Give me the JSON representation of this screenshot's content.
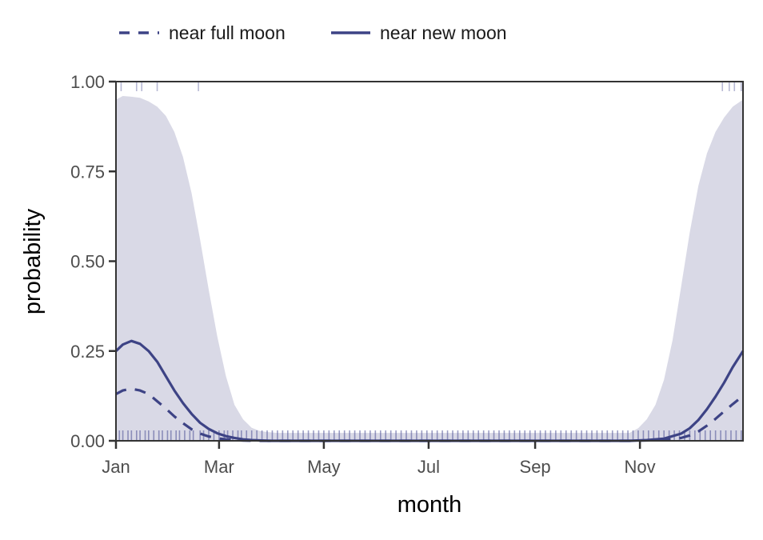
{
  "chart_data": {
    "type": "line",
    "title": "",
    "xlabel": "month",
    "ylabel": "probability",
    "x_unit": "day of year",
    "xlim": [
      1,
      366
    ],
    "ylim": [
      0,
      1
    ],
    "x_ticks": [
      {
        "value": 1,
        "label": "Jan"
      },
      {
        "value": 61,
        "label": "Mar"
      },
      {
        "value": 122,
        "label": "May"
      },
      {
        "value": 183,
        "label": "Jul"
      },
      {
        "value": 245,
        "label": "Sep"
      },
      {
        "value": 306,
        "label": "Nov"
      }
    ],
    "y_ticks": [
      {
        "value": 0,
        "label": "0.00"
      },
      {
        "value": 0.25,
        "label": "0.25"
      },
      {
        "value": 0.5,
        "label": "0.50"
      },
      {
        "value": 0.75,
        "label": "0.75"
      },
      {
        "value": 1,
        "label": "1.00"
      }
    ],
    "legend": {
      "placement": "top-left"
    },
    "colors": {
      "line": "#3d4385",
      "band": "#d9d9e6",
      "rug": "#4b4f93",
      "axis": "#333333"
    },
    "series": [
      {
        "name": "near full moon",
        "style": "dashed",
        "x": [
          1,
          5,
          10,
          15,
          20,
          25,
          30,
          35,
          40,
          45,
          50,
          55,
          60,
          65,
          70,
          75,
          80,
          90,
          100,
          120,
          300,
          320,
          330,
          335,
          340,
          345,
          350,
          355,
          360,
          366
        ],
        "y": [
          0.13,
          0.14,
          0.145,
          0.14,
          0.13,
          0.11,
          0.09,
          0.068,
          0.049,
          0.032,
          0.02,
          0.012,
          0.007,
          0.004,
          0.002,
          0.001,
          0,
          0,
          0,
          0,
          0,
          0.002,
          0.008,
          0.015,
          0.026,
          0.042,
          0.061,
          0.082,
          0.102,
          0.125
        ]
      },
      {
        "name": "near new moon",
        "style": "solid",
        "x": [
          1,
          5,
          10,
          15,
          20,
          25,
          30,
          35,
          40,
          45,
          50,
          55,
          60,
          65,
          70,
          75,
          80,
          90,
          100,
          120,
          300,
          310,
          320,
          330,
          335,
          340,
          345,
          350,
          355,
          360,
          366
        ],
        "y": [
          0.25,
          0.268,
          0.278,
          0.27,
          0.25,
          0.22,
          0.18,
          0.14,
          0.105,
          0.075,
          0.05,
          0.033,
          0.021,
          0.013,
          0.008,
          0.004,
          0.002,
          0,
          0,
          0,
          0,
          0.002,
          0.006,
          0.02,
          0.035,
          0.058,
          0.088,
          0.123,
          0.162,
          0.205,
          0.25
        ]
      }
    ],
    "ribbon": {
      "x": [
        1,
        5,
        10,
        15,
        20,
        25,
        30,
        35,
        40,
        45,
        50,
        55,
        60,
        65,
        70,
        75,
        80,
        85,
        90,
        95,
        100,
        300,
        305,
        310,
        315,
        320,
        325,
        330,
        335,
        340,
        345,
        350,
        355,
        360,
        366
      ],
      "upper": [
        0.95,
        0.96,
        0.958,
        0.955,
        0.945,
        0.93,
        0.905,
        0.86,
        0.79,
        0.69,
        0.56,
        0.42,
        0.29,
        0.18,
        0.1,
        0.06,
        0.036,
        0.027,
        0.024,
        0.022,
        0.022,
        0.022,
        0.035,
        0.06,
        0.1,
        0.17,
        0.28,
        0.43,
        0.58,
        0.71,
        0.8,
        0.86,
        0.9,
        0.93,
        0.95
      ],
      "lower": 0
    },
    "rug_top_days": [
      4,
      13,
      16,
      25,
      49,
      354,
      358,
      361,
      365
    ],
    "rug_bottom_days": [
      3,
      5,
      8,
      10,
      13,
      15,
      18,
      20,
      23,
      26,
      28,
      31,
      33,
      36,
      38,
      41,
      44,
      46,
      50,
      52,
      55,
      58,
      61,
      64,
      66,
      69,
      72,
      74,
      77,
      80,
      83,
      86,
      89,
      92,
      95,
      98,
      101,
      104,
      107,
      110,
      113,
      116,
      119,
      122,
      125,
      128,
      131,
      134,
      137,
      140,
      143,
      146,
      149,
      152,
      155,
      158,
      161,
      164,
      167,
      170,
      173,
      176,
      179,
      182,
      185,
      188,
      191,
      194,
      197,
      200,
      203,
      206,
      209,
      212,
      215,
      218,
      221,
      224,
      227,
      230,
      233,
      236,
      239,
      242,
      245,
      248,
      251,
      254,
      257,
      260,
      263,
      266,
      269,
      272,
      275,
      278,
      281,
      284,
      287,
      290,
      293,
      296,
      299,
      302,
      305,
      308,
      311,
      314,
      317,
      320,
      323,
      326,
      329,
      332,
      335,
      338,
      341,
      344,
      347,
      350,
      353,
      356,
      359,
      362,
      365
    ]
  }
}
